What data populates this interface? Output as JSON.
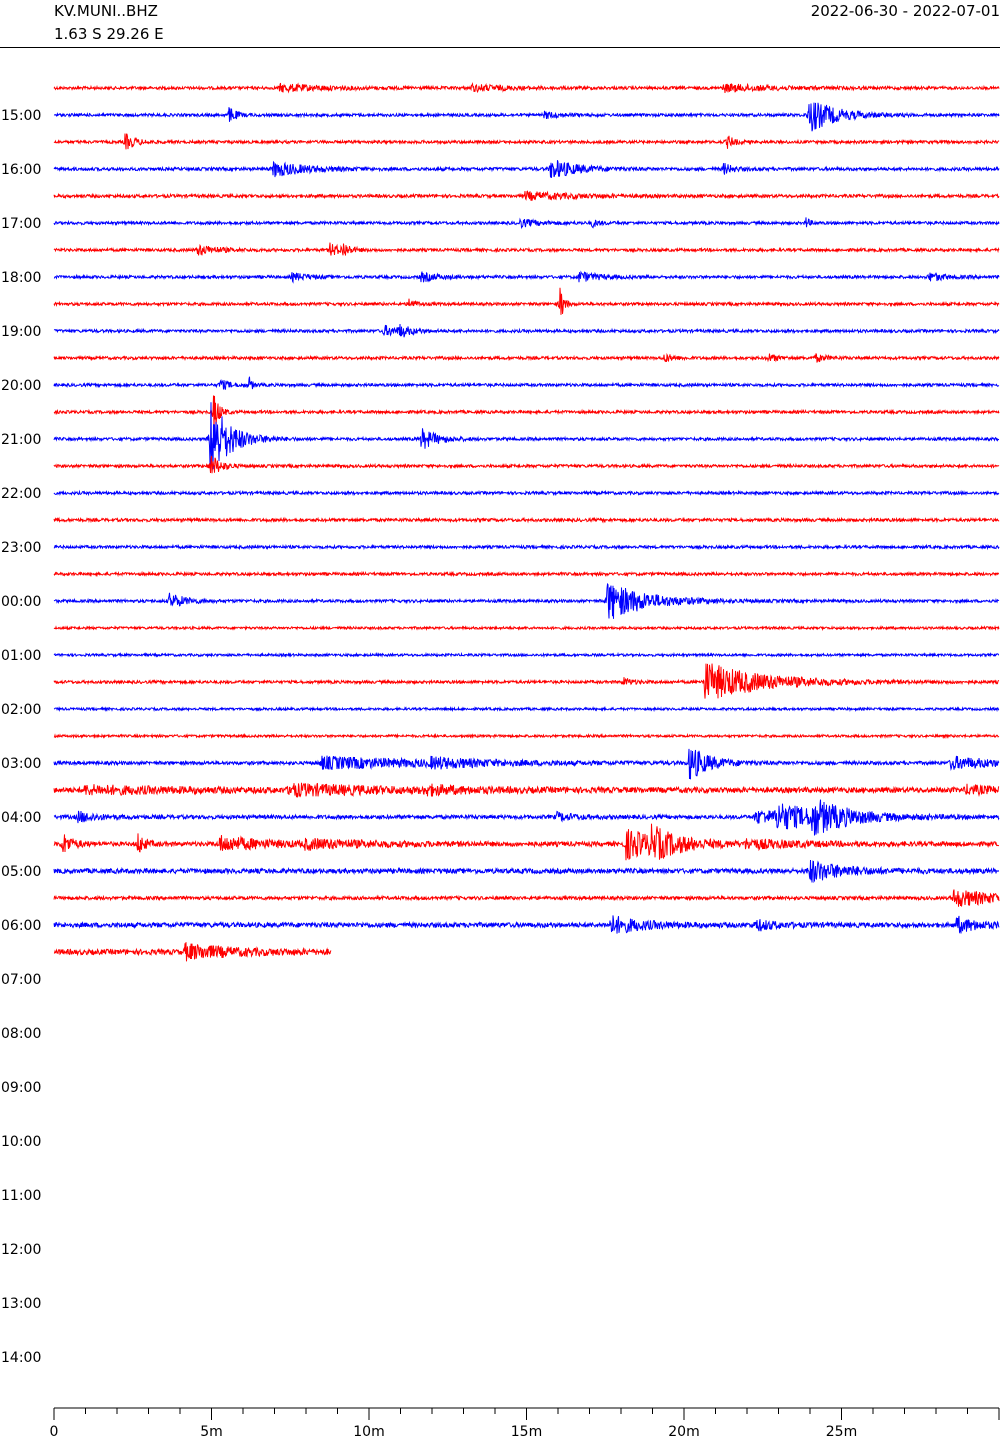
{
  "header": {
    "station": "KV.MUNI..BHZ",
    "coordinates": "1.63 S 29.26 E",
    "date_range": "2022-06-30 - 2022-07-01"
  },
  "chart_data": {
    "type": "line",
    "title": "KV.MUNI..BHZ",
    "subtitle": "1.63 S 29.26 E",
    "date_range": "2022-06-30 - 2022-07-01",
    "xlabel": "",
    "ylabel": "",
    "x_unit": "minutes",
    "xlim": [
      0,
      30
    ],
    "x_ticks": [
      {
        "value": 0,
        "label": "0"
      },
      {
        "value": 5,
        "label": "5m"
      },
      {
        "value": 10,
        "label": "10m"
      },
      {
        "value": 15,
        "label": "15m"
      },
      {
        "value": 20,
        "label": "20m"
      },
      {
        "value": 25,
        "label": "25m"
      }
    ],
    "hour_labels": [
      "15:00",
      "16:00",
      "17:00",
      "18:00",
      "19:00",
      "20:00",
      "21:00",
      "22:00",
      "23:00",
      "00:00",
      "01:00",
      "02:00",
      "03:00",
      "04:00",
      "05:00",
      "06:00",
      "07:00",
      "08:00",
      "09:00",
      "10:00",
      "11:00",
      "12:00",
      "13:00",
      "14:00"
    ],
    "first_trace_start": "14:30",
    "trace_length_minutes": 30,
    "colors": {
      "trace_a": "#ff0000",
      "trace_b": "#0000ff"
    },
    "grid": false,
    "legend": "none",
    "traces": [
      {
        "start": "14:30",
        "color": "red",
        "duration_min": 30,
        "noise": 0.12,
        "events": [
          {
            "t": 7.2,
            "amp": 0.3,
            "decay": 1.5
          },
          {
            "t": 13.3,
            "amp": 0.25,
            "decay": 1.2
          },
          {
            "t": 21.3,
            "amp": 0.3,
            "decay": 1.5
          }
        ]
      },
      {
        "start": "15:00",
        "color": "blue",
        "duration_min": 30,
        "noise": 0.12,
        "events": [
          {
            "t": 5.6,
            "amp": 0.6,
            "decay": 0.2
          },
          {
            "t": 15.6,
            "amp": 0.25,
            "decay": 0.5
          },
          {
            "t": 24.0,
            "amp": 1.4,
            "decay": 0.8
          }
        ]
      },
      {
        "start": "15:30",
        "color": "red",
        "duration_min": 30,
        "noise": 0.12,
        "events": [
          {
            "t": 2.3,
            "amp": 0.6,
            "decay": 0.3
          },
          {
            "t": 21.4,
            "amp": 0.5,
            "decay": 0.2
          }
        ]
      },
      {
        "start": "16:00",
        "color": "blue",
        "duration_min": 30,
        "noise": 0.13,
        "events": [
          {
            "t": 7.0,
            "amp": 0.6,
            "decay": 1.0
          },
          {
            "t": 15.8,
            "amp": 0.8,
            "decay": 0.8
          },
          {
            "t": 21.3,
            "amp": 0.4,
            "decay": 0.3
          }
        ]
      },
      {
        "start": "16:30",
        "color": "red",
        "duration_min": 30,
        "noise": 0.13,
        "events": [
          {
            "t": 15.0,
            "amp": 0.3,
            "decay": 1.5
          }
        ]
      },
      {
        "start": "17:00",
        "color": "blue",
        "duration_min": 30,
        "noise": 0.12,
        "events": [
          {
            "t": 14.8,
            "amp": 0.3,
            "decay": 0.6
          },
          {
            "t": 17.1,
            "amp": 0.3,
            "decay": 0.2
          },
          {
            "t": 23.9,
            "amp": 0.4,
            "decay": 0.1
          }
        ]
      },
      {
        "start": "17:30",
        "color": "red",
        "duration_min": 30,
        "noise": 0.12,
        "events": [
          {
            "t": 4.6,
            "amp": 0.4,
            "decay": 0.6
          },
          {
            "t": 8.8,
            "amp": 0.5,
            "decay": 0.3
          },
          {
            "t": 9.2,
            "amp": 0.5,
            "decay": 0.2
          }
        ]
      },
      {
        "start": "18:00",
        "color": "blue",
        "duration_min": 30,
        "noise": 0.12,
        "events": [
          {
            "t": 7.6,
            "amp": 0.3,
            "decay": 0.5
          },
          {
            "t": 11.7,
            "amp": 0.35,
            "decay": 0.5
          },
          {
            "t": 16.7,
            "amp": 0.4,
            "decay": 0.6
          },
          {
            "t": 27.8,
            "amp": 0.35,
            "decay": 0.5
          }
        ]
      },
      {
        "start": "18:30",
        "color": "red",
        "duration_min": 30,
        "noise": 0.12,
        "events": [
          {
            "t": 11.3,
            "amp": 0.4,
            "decay": 0.2
          },
          {
            "t": 16.1,
            "amp": 1.3,
            "decay": 0.1
          }
        ]
      },
      {
        "start": "19:00",
        "color": "blue",
        "duration_min": 30,
        "noise": 0.12,
        "events": [
          {
            "t": 10.5,
            "amp": 0.4,
            "decay": 0.5
          },
          {
            "t": 11.0,
            "amp": 0.4,
            "decay": 0.3
          }
        ]
      },
      {
        "start": "19:30",
        "color": "red",
        "duration_min": 30,
        "noise": 0.12,
        "events": [
          {
            "t": 19.4,
            "amp": 0.3,
            "decay": 0.3
          },
          {
            "t": 22.7,
            "amp": 0.3,
            "decay": 0.3
          },
          {
            "t": 24.2,
            "amp": 0.3,
            "decay": 0.3
          }
        ]
      },
      {
        "start": "20:00",
        "color": "blue",
        "duration_min": 30,
        "noise": 0.12,
        "events": [
          {
            "t": 5.3,
            "amp": 0.4,
            "decay": 0.3
          },
          {
            "t": 6.2,
            "amp": 0.6,
            "decay": 0.1
          }
        ]
      },
      {
        "start": "20:30",
        "color": "red",
        "duration_min": 30,
        "noise": 0.12,
        "events": [
          {
            "t": 5.1,
            "amp": 1.6,
            "decay": 0.15
          }
        ]
      },
      {
        "start": "21:00",
        "color": "blue",
        "duration_min": 30,
        "noise": 0.12,
        "events": [
          {
            "t": 5.0,
            "amp": 3.2,
            "decay": 0.6
          },
          {
            "t": 11.7,
            "amp": 0.8,
            "decay": 0.5
          }
        ]
      },
      {
        "start": "21:30",
        "color": "red",
        "duration_min": 30,
        "noise": 0.12,
        "events": [
          {
            "t": 5.0,
            "amp": 0.9,
            "decay": 0.3
          }
        ]
      },
      {
        "start": "22:00",
        "color": "blue",
        "duration_min": 30,
        "noise": 0.12,
        "events": []
      },
      {
        "start": "22:30",
        "color": "red",
        "duration_min": 30,
        "noise": 0.13,
        "events": []
      },
      {
        "start": "23:00",
        "color": "blue",
        "duration_min": 30,
        "noise": 0.12,
        "events": []
      },
      {
        "start": "23:30",
        "color": "red",
        "duration_min": 30,
        "noise": 0.12,
        "events": []
      },
      {
        "start": "00:00",
        "color": "blue",
        "duration_min": 30,
        "noise": 0.12,
        "events": [
          {
            "t": 3.7,
            "amp": 0.6,
            "decay": 0.5
          },
          {
            "t": 17.6,
            "amp": 1.6,
            "decay": 1.2
          }
        ]
      },
      {
        "start": "00:30",
        "color": "red",
        "duration_min": 30,
        "noise": 0.1,
        "events": []
      },
      {
        "start": "01:00",
        "color": "blue",
        "duration_min": 30,
        "noise": 0.1,
        "events": []
      },
      {
        "start": "01:30",
        "color": "red",
        "duration_min": 30,
        "noise": 0.12,
        "events": [
          {
            "t": 18.1,
            "amp": 0.3,
            "decay": 0.3
          },
          {
            "t": 20.7,
            "amp": 1.6,
            "decay": 1.8
          }
        ]
      },
      {
        "start": "02:00",
        "color": "blue",
        "duration_min": 30,
        "noise": 0.1,
        "events": []
      },
      {
        "start": "02:30",
        "color": "red",
        "duration_min": 30,
        "noise": 0.1,
        "events": []
      },
      {
        "start": "03:00",
        "color": "blue",
        "duration_min": 30,
        "noise": 0.14,
        "events": [
          {
            "t": 8.5,
            "amp": 0.5,
            "decay": 3.5
          },
          {
            "t": 12.0,
            "amp": 0.3,
            "decay": 1.5
          },
          {
            "t": 20.2,
            "amp": 1.4,
            "decay": 0.6
          },
          {
            "t": 28.5,
            "amp": 0.5,
            "decay": 1.5
          }
        ]
      },
      {
        "start": "03:30",
        "color": "red",
        "duration_min": 30,
        "noise": 0.22,
        "events": [
          {
            "t": 1.0,
            "amp": 0.3,
            "decay": 3.0
          },
          {
            "t": 7.5,
            "amp": 0.4,
            "decay": 3.0
          },
          {
            "t": 11.8,
            "amp": 0.3,
            "decay": 1.0
          },
          {
            "t": 29.0,
            "amp": 0.3,
            "decay": 1.0
          }
        ]
      },
      {
        "start": "04:00",
        "color": "blue",
        "duration_min": 30,
        "noise": 0.16,
        "events": [
          {
            "t": 0.8,
            "amp": 0.4,
            "decay": 0.6
          },
          {
            "t": 16.0,
            "amp": 0.3,
            "decay": 0.6
          },
          {
            "t": 22.3,
            "amp": 0.5,
            "decay": 2.0
          },
          {
            "t": 23.0,
            "amp": 0.8,
            "decay": 1.2
          },
          {
            "t": 24.1,
            "amp": 1.1,
            "decay": 1.0
          }
        ]
      },
      {
        "start": "04:30",
        "color": "red",
        "duration_min": 30,
        "noise": 0.18,
        "events": [
          {
            "t": 0.3,
            "amp": 0.8,
            "decay": 0.3
          },
          {
            "t": 2.7,
            "amp": 0.8,
            "decay": 0.2
          },
          {
            "t": 5.3,
            "amp": 0.6,
            "decay": 1.5
          },
          {
            "t": 8.0,
            "amp": 0.3,
            "decay": 2.5
          },
          {
            "t": 18.2,
            "amp": 1.2,
            "decay": 1.2
          },
          {
            "t": 19.0,
            "amp": 0.9,
            "decay": 0.8
          },
          {
            "t": 22.0,
            "amp": 0.3,
            "decay": 2.0
          }
        ]
      },
      {
        "start": "05:00",
        "color": "blue",
        "duration_min": 30,
        "noise": 0.2,
        "events": [
          {
            "t": 24.0,
            "amp": 0.9,
            "decay": 1.0
          }
        ]
      },
      {
        "start": "05:30",
        "color": "red",
        "duration_min": 30,
        "noise": 0.14,
        "events": [
          {
            "t": 28.6,
            "amp": 0.7,
            "decay": 1.5
          }
        ]
      },
      {
        "start": "06:00",
        "color": "blue",
        "duration_min": 30,
        "noise": 0.2,
        "events": [
          {
            "t": 17.7,
            "amp": 0.7,
            "decay": 1.0
          },
          {
            "t": 22.3,
            "amp": 0.4,
            "decay": 0.6
          },
          {
            "t": 28.7,
            "amp": 0.6,
            "decay": 0.6
          }
        ]
      },
      {
        "start": "06:30",
        "color": "red",
        "duration_min": 8.8,
        "noise": 0.22,
        "events": [
          {
            "t": 4.2,
            "amp": 0.6,
            "decay": 1.5
          }
        ]
      }
    ]
  }
}
